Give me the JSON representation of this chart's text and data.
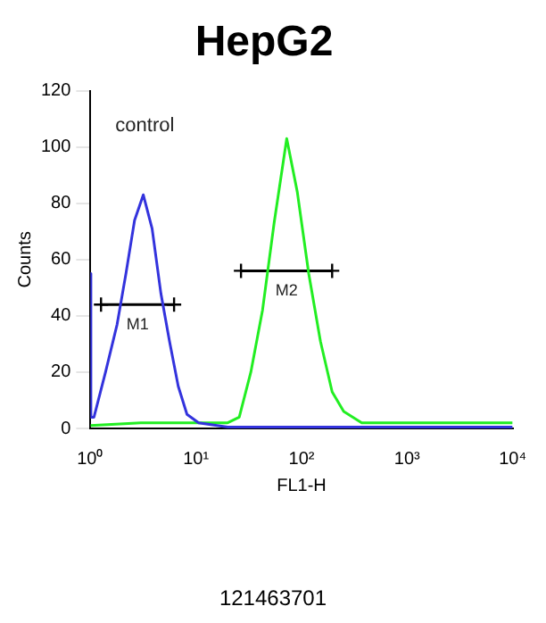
{
  "chart_data": {
    "type": "line",
    "title": "HepG2",
    "xlabel": "FL1-H",
    "ylabel": "Counts",
    "log": "x",
    "grid": false,
    "marker": "none",
    "xlim": [
      1,
      10000
    ],
    "xticks": [
      {
        "value": 1,
        "label": "10⁰"
      },
      {
        "value": 10,
        "label": "10¹"
      },
      {
        "value": 100,
        "label": "10²"
      },
      {
        "value": 1000,
        "label": "10³"
      },
      {
        "value": 10000,
        "label": "10⁴"
      }
    ],
    "ylim": [
      0,
      120
    ],
    "yticks": [
      0,
      20,
      40,
      60,
      80,
      100,
      120
    ],
    "series": [
      {
        "color": "#3333dd",
        "x": [
          1,
          1.01,
          1.08,
          1.39,
          1.79,
          2.17,
          2.62,
          3.17,
          3.84,
          4.65,
          5.61,
          6.79,
          8.22,
          10.6,
          20,
          50,
          100,
          300,
          1000,
          3000,
          10000
        ],
        "values": [
          55,
          4,
          4,
          20,
          37,
          55,
          74,
          83,
          71,
          48,
          31,
          15,
          5,
          2,
          0.5,
          0.5,
          0.5,
          0.5,
          0.5,
          0.5,
          0.5
        ]
      },
      {
        "color": "#22ee22",
        "x": [
          1,
          3,
          10,
          20,
          25.7,
          33.1,
          42.7,
          55,
          72.4,
          91.2,
          117,
          151,
          195,
          251,
          372,
          500,
          1000,
          3000,
          10000
        ],
        "values": [
          1,
          2,
          2,
          2,
          4,
          20,
          42,
          73,
          103,
          84,
          55,
          31,
          13,
          6,
          2,
          2,
          2,
          2,
          2
        ]
      },
      {
        "name": "M1",
        "color": "#000000",
        "marker": "cross",
        "x": [
          1.26,
          6.2
        ],
        "values": [
          44,
          44
        ]
      },
      {
        "name": "M2",
        "color": "#000000",
        "marker": "cross",
        "x": [
          26.7,
          195
        ],
        "values": [
          56,
          56
        ]
      }
    ],
    "annotations": [
      "control",
      "121463701"
    ]
  }
}
